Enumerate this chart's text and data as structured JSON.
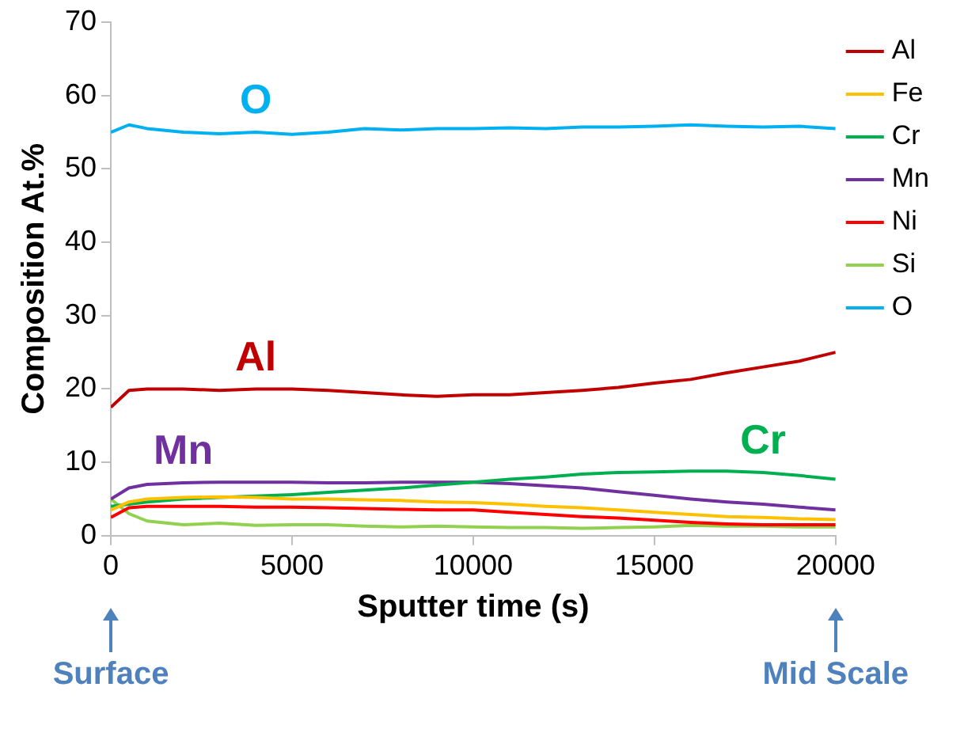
{
  "chart_data": {
    "type": "line",
    "xlabel": "Sputter time (s)",
    "ylabel": "Composition At.%",
    "x": [
      0,
      500,
      1000,
      2000,
      3000,
      4000,
      5000,
      6000,
      7000,
      8000,
      9000,
      10000,
      11000,
      12000,
      13000,
      14000,
      15000,
      16000,
      17000,
      18000,
      19000,
      20000
    ],
    "xlim": [
      0,
      20000
    ],
    "xticks": [
      0,
      5000,
      10000,
      15000,
      20000
    ],
    "ylim": [
      0,
      70
    ],
    "yticks": [
      0,
      10,
      20,
      30,
      40,
      50,
      60,
      70
    ],
    "series": [
      {
        "name": "Al",
        "color": "#c00000",
        "values": [
          17.5,
          19.8,
          20,
          20,
          19.8,
          20,
          20,
          19.8,
          19.5,
          19.2,
          19,
          19.2,
          19.2,
          19.5,
          19.8,
          20.2,
          20.8,
          21.3,
          22.2,
          23,
          23.8,
          25
        ]
      },
      {
        "name": "Fe",
        "color": "#ffc000",
        "values": [
          3.5,
          4.6,
          5,
          5.2,
          5.3,
          5.2,
          5,
          5,
          4.9,
          4.8,
          4.6,
          4.5,
          4.3,
          4,
          3.8,
          3.5,
          3.2,
          2.9,
          2.6,
          2.5,
          2.3,
          2.2
        ]
      },
      {
        "name": "Cr",
        "color": "#00b050",
        "values": [
          4,
          4.3,
          4.6,
          5,
          5.2,
          5.4,
          5.6,
          5.9,
          6.2,
          6.5,
          6.9,
          7.3,
          7.7,
          8,
          8.4,
          8.6,
          8.7,
          8.8,
          8.8,
          8.6,
          8.2,
          7.7
        ]
      },
      {
        "name": "Mn",
        "color": "#7030a0",
        "values": [
          5,
          6.5,
          7,
          7.2,
          7.3,
          7.3,
          7.3,
          7.2,
          7.2,
          7.3,
          7.3,
          7.3,
          7.1,
          6.8,
          6.5,
          6,
          5.5,
          5,
          4.6,
          4.3,
          3.9,
          3.5
        ]
      },
      {
        "name": "Ni",
        "color": "#ff0000",
        "values": [
          2.5,
          3.8,
          4,
          4,
          4,
          3.9,
          3.9,
          3.8,
          3.7,
          3.6,
          3.5,
          3.5,
          3.2,
          2.9,
          2.6,
          2.4,
          2.1,
          1.8,
          1.6,
          1.5,
          1.5,
          1.5
        ]
      },
      {
        "name": "Si",
        "color": "#92d050",
        "values": [
          5,
          3,
          2,
          1.5,
          1.7,
          1.4,
          1.5,
          1.5,
          1.3,
          1.2,
          1.3,
          1.2,
          1.1,
          1.1,
          1,
          1.1,
          1.2,
          1.4,
          1.3,
          1.3,
          1.2,
          1.2
        ]
      },
      {
        "name": "O",
        "color": "#00b0f0",
        "values": [
          55,
          56,
          55.5,
          55,
          54.8,
          55,
          54.7,
          55,
          55.5,
          55.3,
          55.5,
          55.5,
          55.6,
          55.5,
          55.7,
          55.7,
          55.8,
          56,
          55.8,
          55.7,
          55.8,
          55.5
        ]
      }
    ],
    "annotations": [
      {
        "text": "O",
        "x": 4000,
        "y": 55
      },
      {
        "text": "Al",
        "x": 4000,
        "y": 20
      },
      {
        "text": "Mn",
        "x": 2000,
        "y": 7.2
      },
      {
        "text": "Cr",
        "x": 18000,
        "y": 8.6
      },
      "Surface",
      "Mid Scale"
    ],
    "grid": false,
    "legend": "right",
    "marker": "none",
    "line_style": "solid"
  }
}
